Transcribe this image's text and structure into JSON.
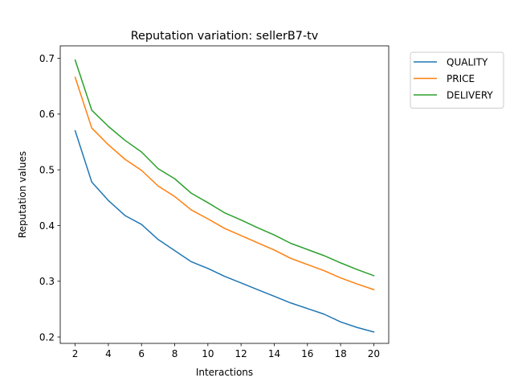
{
  "chart_data": {
    "type": "line",
    "title": "Reputation variation: sellerB7-tv",
    "xlabel": "Interactions",
    "ylabel": "Reputation values",
    "xlim": [
      1.1,
      20.9
    ],
    "ylim": [
      0.1885,
      0.7225
    ],
    "xticks": [
      2,
      4,
      6,
      8,
      10,
      12,
      14,
      16,
      18,
      20
    ],
    "yticks": [
      0.2,
      0.3,
      0.4,
      0.5,
      0.6,
      0.7
    ],
    "x": [
      2,
      3,
      4,
      5,
      6,
      7,
      8,
      9,
      10,
      11,
      12,
      13,
      14,
      15,
      16,
      17,
      18,
      19,
      20
    ],
    "grid": false,
    "legend_position": "outside-top-right",
    "series": [
      {
        "name": "QUALITY",
        "color": "#1f77b4",
        "values": [
          0.57,
          0.478,
          0.445,
          0.418,
          0.402,
          0.375,
          0.355,
          0.335,
          0.323,
          0.309,
          0.297,
          0.285,
          0.273,
          0.261,
          0.251,
          0.241,
          0.227,
          0.217,
          0.209
        ]
      },
      {
        "name": "PRICE",
        "color": "#ff7f0e",
        "values": [
          0.666,
          0.575,
          0.545,
          0.519,
          0.499,
          0.471,
          0.452,
          0.428,
          0.412,
          0.395,
          0.382,
          0.369,
          0.356,
          0.341,
          0.33,
          0.319,
          0.306,
          0.295,
          0.285
        ]
      },
      {
        "name": "DELIVERY",
        "color": "#2ca02c",
        "values": [
          0.697,
          0.607,
          0.578,
          0.553,
          0.532,
          0.502,
          0.484,
          0.458,
          0.441,
          0.423,
          0.41,
          0.396,
          0.383,
          0.368,
          0.357,
          0.346,
          0.333,
          0.321,
          0.31
        ]
      }
    ]
  }
}
